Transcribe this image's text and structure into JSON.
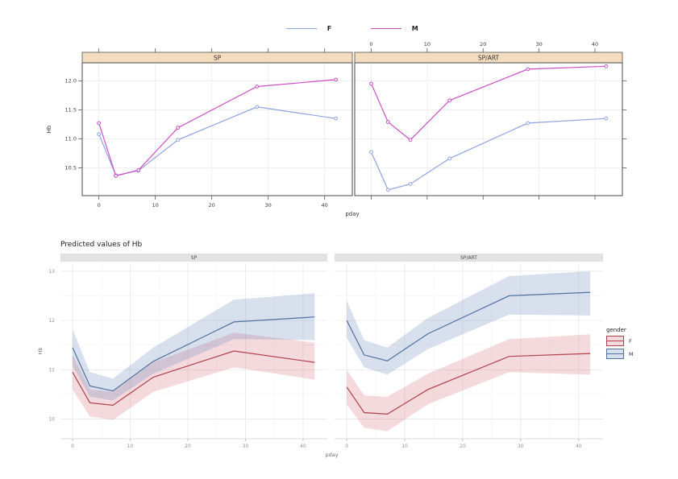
{
  "chart_data": [
    {
      "type": "line",
      "name": "lattice-xyplot",
      "xlabel": "pday",
      "ylabel": "Hb",
      "x": [
        0,
        3,
        7,
        14,
        28,
        42
      ],
      "xticks": [
        0,
        10,
        20,
        30,
        40
      ],
      "yticks": [
        10.5,
        11.0,
        11.5,
        12.0
      ],
      "ytick_labels": [
        "10.5",
        "11.0",
        "11.5",
        "12.0"
      ],
      "xlim": [
        -2.95,
        44.9
      ],
      "ylim": [
        10.02,
        12.31
      ],
      "grid": true,
      "legend_position": "top",
      "strip_fill": "#f4ddbe",
      "strip_border": "#6e6e6e",
      "panel_border": "#4a4a4a",
      "colors": {
        "F": "#8fa3e2",
        "M": "#cb50c6"
      },
      "legend": [
        {
          "label": "F"
        },
        {
          "label": "M"
        }
      ],
      "panels": [
        {
          "label": "SP",
          "series": {
            "F": [
              11.08,
              10.37,
              10.45,
              10.98,
              11.55,
              11.35
            ],
            "M": [
              11.27,
              10.36,
              10.46,
              11.19,
              11.9,
              12.02
            ]
          }
        },
        {
          "label": "SP/ART",
          "series": {
            "F": [
              10.77,
              10.12,
              10.22,
              10.66,
              11.27,
              11.35
            ],
            "M": [
              11.95,
              11.29,
              10.98,
              11.66,
              12.2,
              12.25
            ]
          }
        }
      ]
    },
    {
      "type": "area",
      "name": "predicted-values-ribbon",
      "title": "Predicted values of Hb",
      "xlabel": "pday",
      "ylabel": "Hb",
      "legend_title": "gender",
      "legend_position": "right",
      "x": [
        0,
        3,
        7,
        14,
        28,
        42
      ],
      "xticks": [
        0,
        10,
        20,
        30,
        40
      ],
      "xminor": [
        5,
        15,
        25,
        35
      ],
      "yticks": [
        10,
        11,
        12,
        13
      ],
      "yminor": [
        9.5,
        10.5,
        11.5,
        12.5
      ],
      "xlim": [
        -2.1,
        44.2
      ],
      "ylim": [
        9.6,
        13.16
      ],
      "grid": true,
      "strip_fill": "#e2e2e2",
      "styles": {
        "F": {
          "line": "#b0404a",
          "fill": "rgba(203,88,98,0.22)"
        },
        "M": {
          "line": "#50719f",
          "fill": "rgba(105,135,185,0.26)"
        }
      },
      "legend": [
        {
          "label": "F"
        },
        {
          "label": "M"
        }
      ],
      "panels": [
        {
          "label": "SP",
          "series": {
            "F": {
              "line": [
                10.95,
                10.33,
                10.28,
                10.85,
                11.38,
                11.15
              ],
              "lower": [
                10.6,
                10.05,
                9.98,
                10.55,
                11.05,
                10.8
              ],
              "upper": [
                11.3,
                10.6,
                10.55,
                11.15,
                11.75,
                11.55
              ]
            },
            "M": {
              "line": [
                11.45,
                10.67,
                10.57,
                11.17,
                11.97,
                12.07
              ],
              "lower": [
                11.08,
                10.45,
                10.38,
                10.92,
                11.62,
                11.6
              ],
              "upper": [
                11.82,
                10.95,
                10.82,
                11.45,
                12.42,
                12.55
              ]
            }
          }
        },
        {
          "label": "SP/ART",
          "series": {
            "F": {
              "line": [
                10.65,
                10.13,
                10.1,
                10.6,
                11.27,
                11.33
              ],
              "lower": [
                10.3,
                9.82,
                9.75,
                10.3,
                10.95,
                10.9
              ],
              "upper": [
                11.0,
                10.48,
                10.45,
                10.92,
                11.62,
                11.72
              ]
            },
            "M": {
              "line": [
                12.0,
                11.3,
                11.18,
                11.73,
                12.5,
                12.57
              ],
              "lower": [
                11.65,
                11.05,
                10.9,
                11.42,
                12.12,
                12.1
              ],
              "upper": [
                12.4,
                11.6,
                11.45,
                12.05,
                12.9,
                13.0
              ]
            }
          }
        }
      ]
    }
  ]
}
